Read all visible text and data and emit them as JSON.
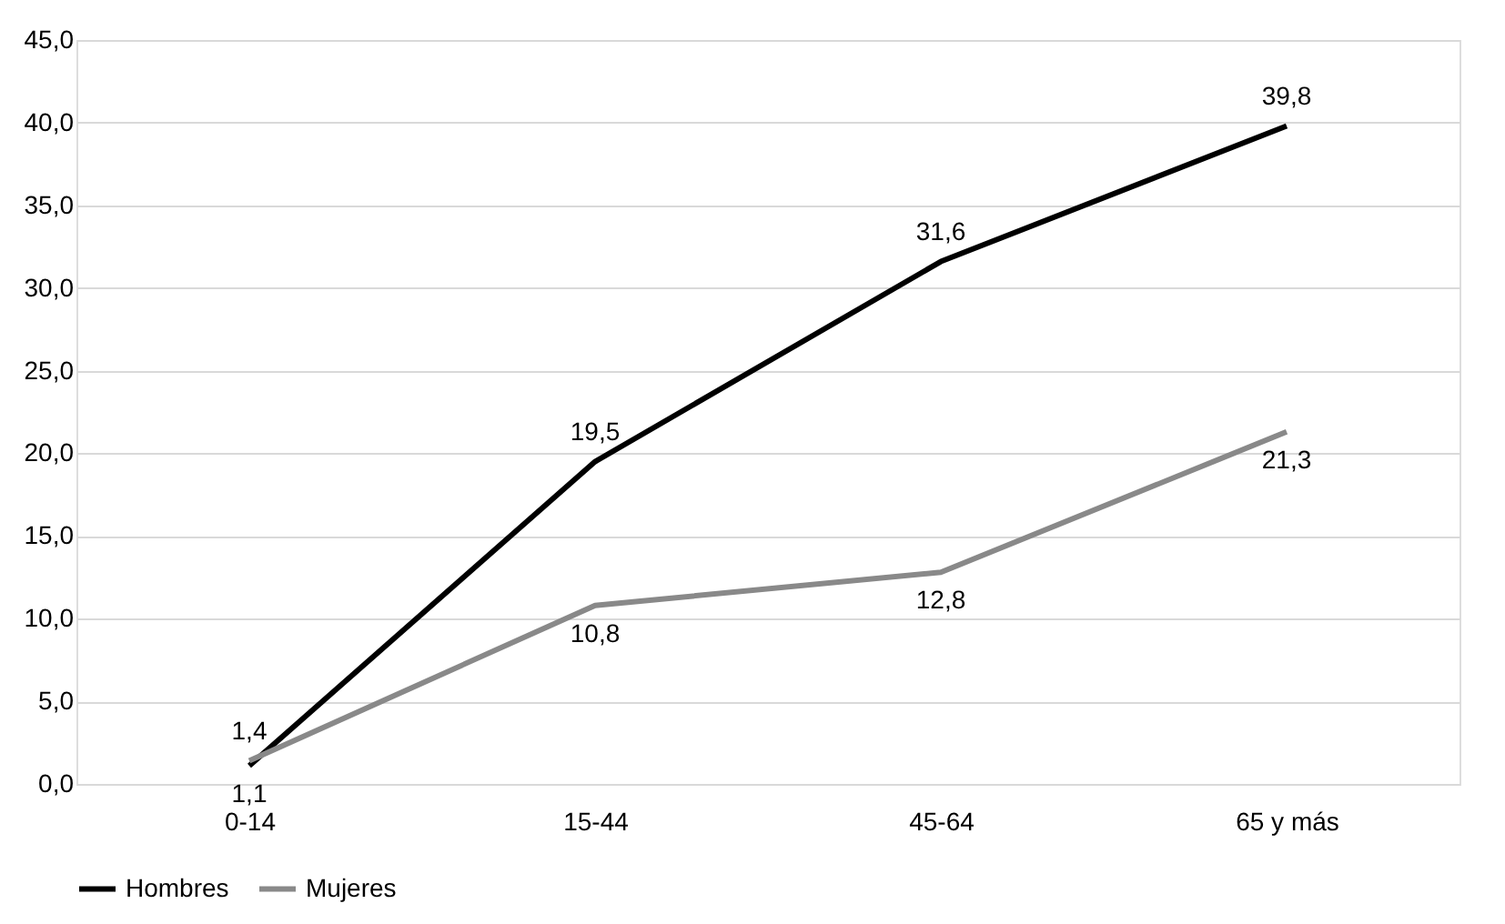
{
  "chart_data": {
    "type": "line",
    "categories": [
      "0-14",
      "15-44",
      "45-64",
      "65 y más"
    ],
    "series": [
      {
        "name": "Hombres",
        "color": "#000000",
        "values": [
          1.1,
          19.5,
          31.6,
          39.8
        ],
        "value_labels": [
          "1,1",
          "19,5",
          "31,6",
          "39,8"
        ]
      },
      {
        "name": "Mujeres",
        "color": "#898989",
        "values": [
          1.4,
          10.8,
          12.8,
          21.3
        ],
        "value_labels": [
          "1,4",
          "10,8",
          "12,8",
          "21,3"
        ]
      }
    ],
    "ylim": [
      0,
      45
    ],
    "yticks": [
      {
        "value": 0,
        "label": "0,0"
      },
      {
        "value": 5,
        "label": "5,0"
      },
      {
        "value": 10,
        "label": "10,0"
      },
      {
        "value": 15,
        "label": "15,0"
      },
      {
        "value": 20,
        "label": "20,0"
      },
      {
        "value": 25,
        "label": "25,0"
      },
      {
        "value": 30,
        "label": "30,0"
      },
      {
        "value": 35,
        "label": "35,0"
      },
      {
        "value": 40,
        "label": "40,0"
      },
      {
        "value": 45,
        "label": "45,0"
      }
    ],
    "grid": "y",
    "legend": "bottom",
    "marker": "none",
    "line_style": "solid"
  }
}
